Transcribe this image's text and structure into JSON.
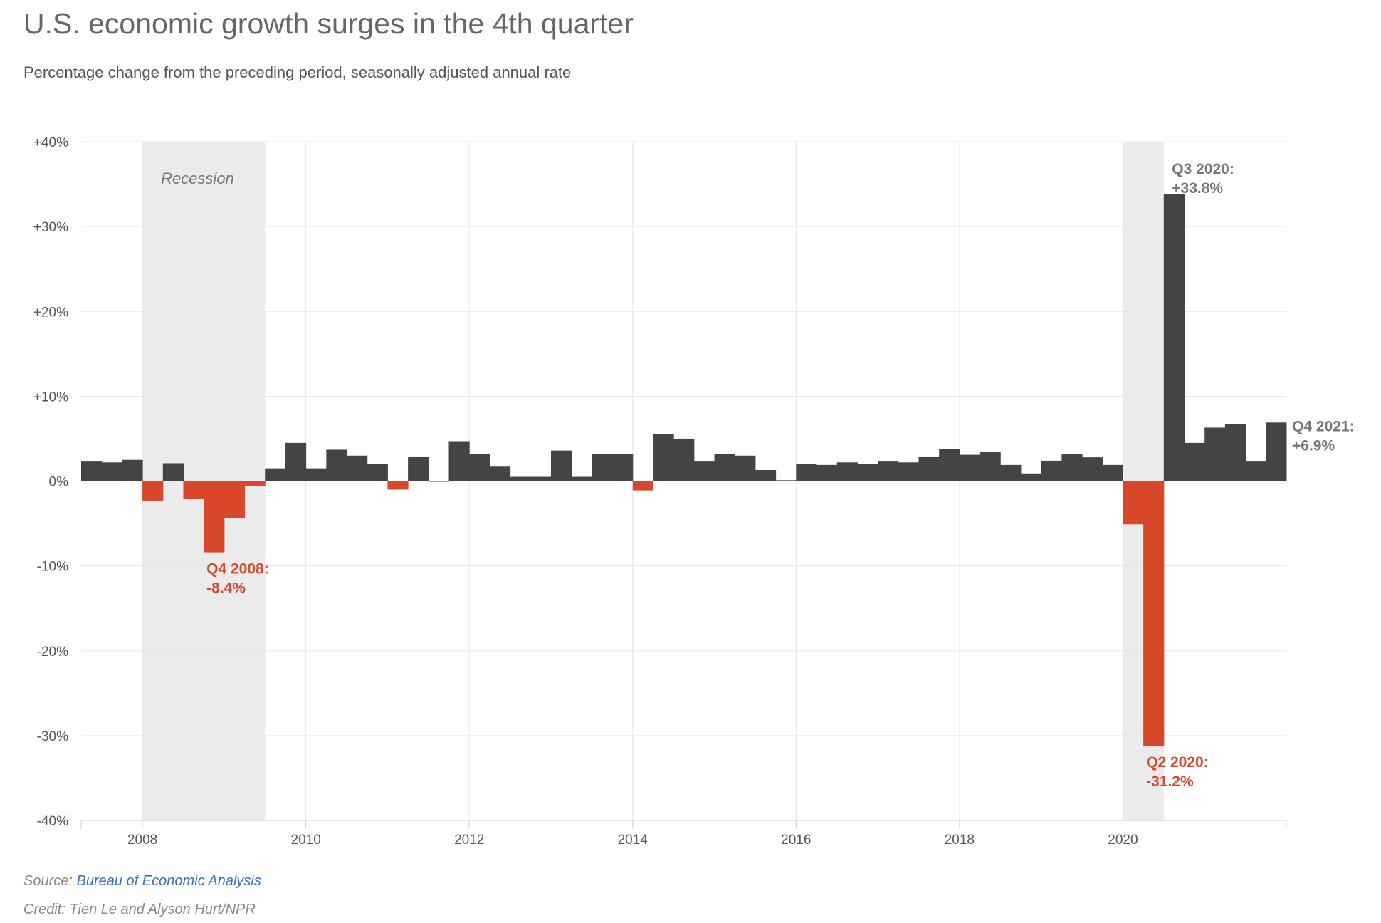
{
  "header": {
    "title": "U.S. economic growth surges in the 4th quarter",
    "subtitle": "Percentage change from the preceding period, seasonally adjusted annual rate"
  },
  "footer": {
    "source_prefix": "Source: ",
    "source_link": "Bureau of Economic Analysis",
    "credit": "Credit: Tien Le and Alyson Hurt/NPR"
  },
  "colors": {
    "positive": "#444444",
    "negative": "#d9472b",
    "recession": "#ebebeb",
    "grid": "#e6e6e6",
    "label": "#777777"
  },
  "chart_data": {
    "type": "bar",
    "title": "U.S. economic growth surges in the 4th quarter",
    "ylabel": "Percentage change from the preceding period, seasonally adjusted annual rate",
    "ylim": [
      -40,
      40
    ],
    "yticks": [
      40,
      30,
      20,
      10,
      0,
      -10,
      -20,
      -30,
      -40
    ],
    "ytick_labels": [
      "+40%",
      "+30%",
      "+20%",
      "+10%",
      "0%",
      "-10%",
      "-20%",
      "-30%",
      "-40%"
    ],
    "x_start": 2007.25,
    "x_end": 2022.0,
    "xticks": [
      2008,
      2010,
      2012,
      2014,
      2016,
      2018,
      2020
    ],
    "xtick_labels": [
      "2008",
      "2010",
      "2012",
      "2014",
      "2016",
      "2018",
      "2020"
    ],
    "recessions": [
      {
        "start": 2008.0,
        "end": 2009.5,
        "label": "Recession"
      },
      {
        "start": 2020.0,
        "end": 2020.5,
        "label": ""
      }
    ],
    "categories": [
      "Q2 2007",
      "Q3 2007",
      "Q4 2007",
      "Q1 2008",
      "Q2 2008",
      "Q3 2008",
      "Q4 2008",
      "Q1 2009",
      "Q2 2009",
      "Q3 2009",
      "Q4 2009",
      "Q1 2010",
      "Q2 2010",
      "Q3 2010",
      "Q4 2010",
      "Q1 2011",
      "Q2 2011",
      "Q3 2011",
      "Q4 2011",
      "Q1 2012",
      "Q2 2012",
      "Q3 2012",
      "Q4 2012",
      "Q1 2013",
      "Q2 2013",
      "Q3 2013",
      "Q4 2013",
      "Q1 2014",
      "Q2 2014",
      "Q3 2014",
      "Q4 2014",
      "Q1 2015",
      "Q2 2015",
      "Q3 2015",
      "Q4 2015",
      "Q1 2016",
      "Q2 2016",
      "Q3 2016",
      "Q4 2016",
      "Q1 2017",
      "Q2 2017",
      "Q3 2017",
      "Q4 2017",
      "Q1 2018",
      "Q2 2018",
      "Q3 2018",
      "Q4 2018",
      "Q1 2019",
      "Q2 2019",
      "Q3 2019",
      "Q4 2019",
      "Q1 2020",
      "Q2 2020",
      "Q3 2020",
      "Q4 2020",
      "Q1 2021",
      "Q2 2021",
      "Q3 2021",
      "Q4 2021"
    ],
    "values": [
      2.3,
      2.2,
      2.5,
      -2.3,
      2.1,
      -2.1,
      -8.4,
      -4.4,
      -0.6,
      1.5,
      4.5,
      1.5,
      3.7,
      3.0,
      2.0,
      -1.0,
      2.9,
      -0.1,
      4.7,
      3.2,
      1.7,
      0.5,
      0.5,
      3.6,
      0.5,
      3.2,
      3.2,
      -1.1,
      5.5,
      5.0,
      2.3,
      3.2,
      3.0,
      1.3,
      0.1,
      2.0,
      1.9,
      2.2,
      2.0,
      2.3,
      2.2,
      2.9,
      3.8,
      3.1,
      3.4,
      1.9,
      0.9,
      2.4,
      3.2,
      2.8,
      1.9,
      -5.1,
      -31.2,
      33.8,
      4.5,
      6.3,
      6.7,
      2.3,
      6.9
    ],
    "prefix_value": 0.9,
    "annotations": [
      {
        "category": "Q4 2008",
        "line1": "Q4 2008:",
        "line2": "-8.4%",
        "color": "#d9472b"
      },
      {
        "category": "Q2 2020",
        "line1": "Q2 2020:",
        "line2": "-31.2%",
        "color": "#d9472b"
      },
      {
        "category": "Q3 2020",
        "line1": "Q3 2020:",
        "line2": "+33.8%",
        "color": "#777777"
      },
      {
        "category": "Q4 2021",
        "line1": "Q4 2021:",
        "line2": "+6.9%",
        "color": "#777777"
      }
    ]
  }
}
